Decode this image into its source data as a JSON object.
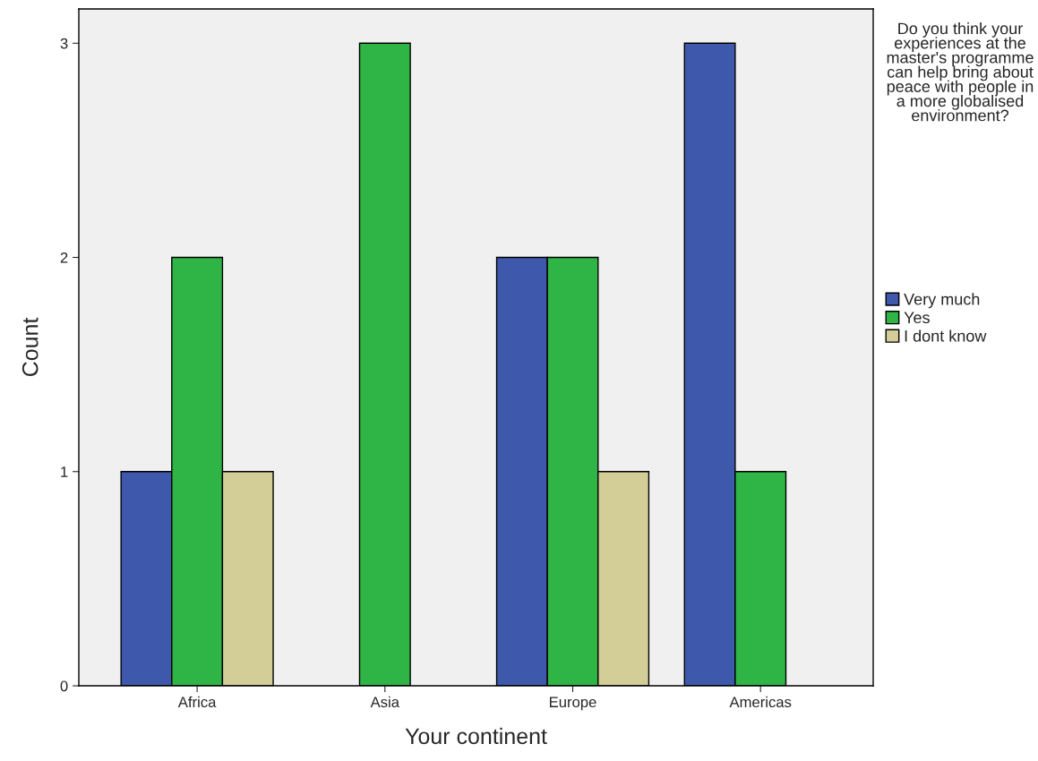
{
  "chart_data": {
    "type": "bar",
    "xlabel": "Your continent",
    "ylabel": "Count",
    "categories": [
      "Africa",
      "Asia",
      "Europe",
      "Americas"
    ],
    "legend_title": "Do you think your experiences at the master's programme can help bring about peace with people in a more globalised environment?",
    "series": [
      {
        "name": "Very much",
        "color": "#3e58ac",
        "values": [
          1,
          null,
          2,
          3
        ]
      },
      {
        "name": "Yes",
        "color": "#2fb546",
        "values": [
          2,
          3,
          2,
          1
        ]
      },
      {
        "name": "I dont know",
        "color": "#d3ce97",
        "values": [
          1,
          null,
          1,
          null
        ]
      }
    ],
    "ylim": [
      0,
      3.16
    ],
    "yticks": [
      0,
      1,
      2,
      3
    ],
    "grid": false,
    "legend": "right"
  }
}
